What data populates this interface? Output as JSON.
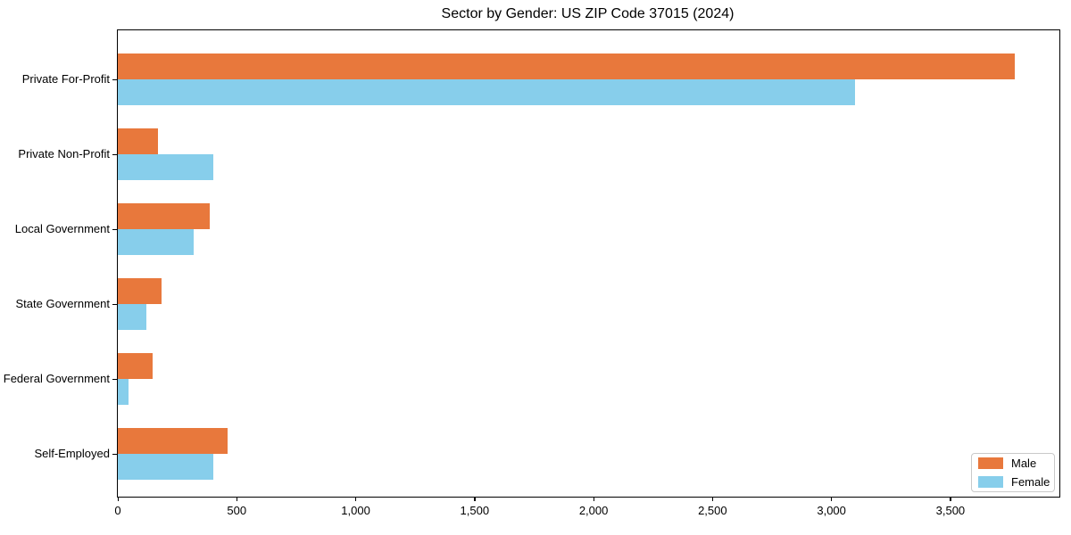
{
  "chart_data": {
    "type": "bar",
    "orientation": "horizontal",
    "title": "Sector by Gender: US ZIP Code 37015 (2024)",
    "categories": [
      "Private For-Profit",
      "Private Non-Profit",
      "Local Government",
      "State Government",
      "Federal Government",
      "Self-Employed"
    ],
    "series": [
      {
        "name": "Male",
        "color": "#e8783c",
        "values": [
          3770,
          170,
          385,
          185,
          145,
          460
        ]
      },
      {
        "name": "Female",
        "color": "#87ceeb",
        "values": [
          3100,
          400,
          320,
          120,
          45,
          400
        ]
      }
    ],
    "xlabel": "",
    "ylabel": "",
    "xlim": [
      0,
      3958
    ],
    "xticks": [
      0,
      500,
      1000,
      1500,
      2000,
      2500,
      3000,
      3500
    ],
    "xtick_labels": [
      "0",
      "500",
      "1,000",
      "1,500",
      "2,000",
      "2,500",
      "3,000",
      "3,500"
    ],
    "legend": {
      "position": "lower right",
      "entries": [
        "Male",
        "Female"
      ]
    },
    "grid": false,
    "background_color": "#ffffff",
    "spine_color": "#000000"
  }
}
